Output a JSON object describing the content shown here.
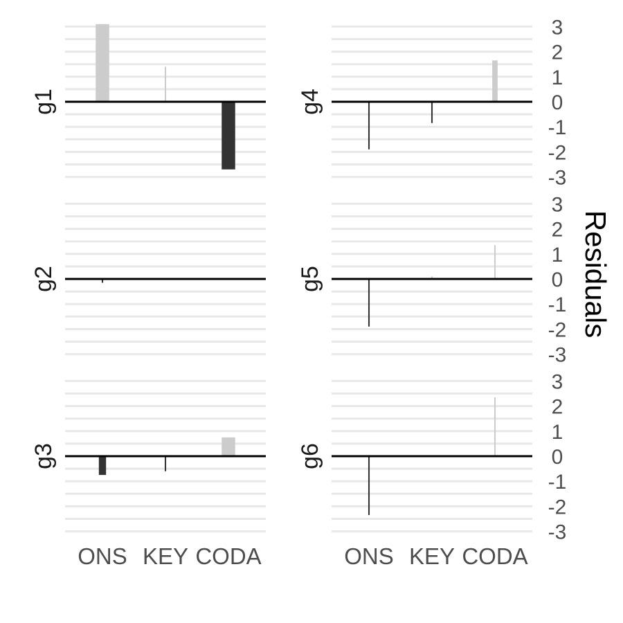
{
  "chart_data": {
    "type": "bar",
    "ylabel": "Residuals",
    "ylim": [
      -3,
      3
    ],
    "yticks": [
      "3",
      "2",
      "1",
      "0",
      "-1",
      "-2",
      "-3"
    ],
    "categories": [
      "ONS",
      "KEY",
      "CODA"
    ],
    "axis_position": "right",
    "grid": true,
    "colors": {
      "positive": "#cccccc",
      "negative": "#333333",
      "zero_line": "#000000",
      "grid": "#e8e8e8"
    },
    "panels": [
      {
        "label": "g1",
        "values": [
          3.1,
          1.4,
          -2.7
        ],
        "widths": [
          0.75,
          0.08,
          0.75
        ]
      },
      {
        "label": "g2",
        "values": [
          -0.15,
          0,
          0
        ],
        "widths": [
          0.08,
          0.08,
          0.08
        ]
      },
      {
        "label": "g3",
        "values": [
          -0.75,
          -0.6,
          0.75
        ],
        "widths": [
          0.4,
          0.08,
          0.75
        ]
      },
      {
        "label": "g4",
        "values": [
          -1.9,
          -0.85,
          1.65
        ],
        "widths": [
          0.08,
          0.08,
          0.3
        ]
      },
      {
        "label": "g5",
        "values": [
          -1.9,
          0.1,
          1.35
        ],
        "widths": [
          0.08,
          0.08,
          0.08
        ]
      },
      {
        "label": "g6",
        "values": [
          -2.35,
          0,
          2.35
        ],
        "widths": [
          0.08,
          0.08,
          0.08
        ]
      }
    ]
  }
}
